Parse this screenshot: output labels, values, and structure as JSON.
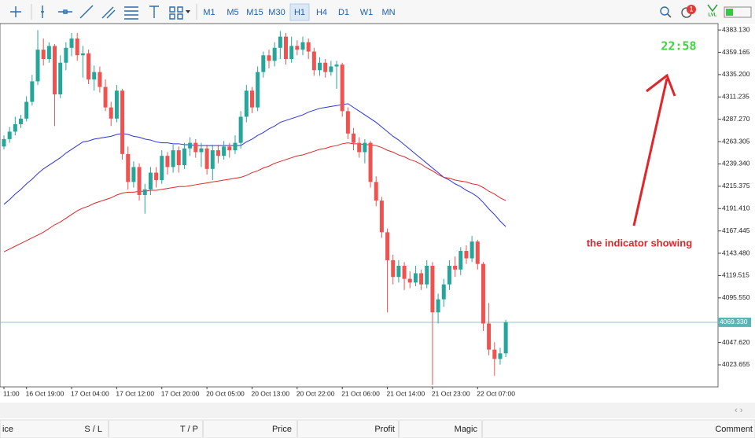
{
  "toolbar": {
    "timeframes": [
      "M1",
      "M5",
      "M15",
      "M30",
      "H1",
      "H4",
      "D1",
      "W1",
      "MN"
    ],
    "active": "H1",
    "badge": "1",
    "level": "LVL"
  },
  "chart_data": {
    "type": "candlestick",
    "categories": [
      "11:00",
      null,
      null,
      null,
      "16 Oct 19:00",
      null,
      null,
      null,
      null,
      null,
      null,
      null,
      "17 Oct 04:00",
      null,
      null,
      null,
      null,
      null,
      null,
      null,
      "17 Oct 12:00",
      null,
      null,
      null,
      null,
      null,
      null,
      null,
      "17 Oct 20:00",
      null,
      null,
      null,
      null,
      null,
      null,
      null,
      "20 Oct 05:00",
      null,
      null,
      null,
      null,
      null,
      null,
      null,
      "20 Oct 13:00",
      null,
      null,
      null,
      null,
      null,
      null,
      null,
      "20 Oct 22:00",
      null,
      null,
      null,
      null,
      null,
      null,
      null,
      "21 Oct 06:00",
      null,
      null,
      null,
      null,
      null,
      null,
      null,
      "21 Oct 14:00",
      null,
      null,
      null,
      null,
      null,
      null,
      null,
      "21 Oct 23:00",
      null,
      null,
      null,
      null,
      null,
      null,
      null,
      "22 Oct 07:00",
      null,
      null,
      null,
      null,
      null
    ],
    "open": [
      4258,
      4266,
      4274,
      4282,
      4288,
      4306,
      4328,
      4362,
      4352,
      4366,
      4314,
      4348,
      4364,
      4374,
      4356,
      4358,
      4330,
      4338,
      4322,
      4300,
      4288,
      4318,
      4250,
      4220,
      4236,
      4206,
      4212,
      4230,
      4222,
      4248,
      4236,
      4254,
      4238,
      4256,
      4262,
      4252,
      4256,
      4234,
      4254,
      4248,
      4258,
      4254,
      4262,
      4290,
      4318,
      4300,
      4338,
      4356,
      4350,
      4364,
      4376,
      4352,
      4366,
      4362,
      4370,
      4360,
      4340,
      4348,
      4338,
      4344,
      4346,
      4296,
      4272,
      4262,
      4252,
      4262,
      4220,
      4200,
      4166,
      4136,
      4118,
      4130,
      4116,
      4112,
      4122,
      4110,
      4130,
      4080,
      4094,
      4110,
      4130,
      4126,
      4146,
      4138,
      4156,
      4132,
      4068,
      4040,
      4030,
      4036
    ],
    "high": [
      4270,
      4279,
      4290,
      4292,
      4312,
      4335,
      4383,
      4374,
      4370,
      4368,
      4356,
      4370,
      4380,
      4380,
      4366,
      4362,
      4345,
      4344,
      4330,
      4306,
      4324,
      4320,
      4258,
      4242,
      4240,
      4218,
      4236,
      4236,
      4254,
      4252,
      4260,
      4258,
      4262,
      4268,
      4266,
      4262,
      4260,
      4260,
      4260,
      4264,
      4262,
      4270,
      4296,
      4324,
      4322,
      4344,
      4360,
      4362,
      4370,
      4382,
      4380,
      4376,
      4372,
      4376,
      4374,
      4364,
      4354,
      4352,
      4350,
      4350,
      4348,
      4300,
      4278,
      4268,
      4266,
      4264,
      4226,
      4204,
      4170,
      4142,
      4136,
      4134,
      4124,
      4130,
      4126,
      4136,
      4134,
      4100,
      4116,
      4136,
      4140,
      4150,
      4152,
      4162,
      4158,
      4134,
      4090,
      4048,
      4042,
      4072
    ],
    "low": [
      4255,
      4262,
      4270,
      4278,
      4285,
      4302,
      4324,
      4345,
      4348,
      4280,
      4310,
      4340,
      4355,
      4350,
      4332,
      4325,
      4318,
      4316,
      4296,
      4280,
      4284,
      4244,
      4212,
      4214,
      4200,
      4186,
      4206,
      4214,
      4218,
      4228,
      4230,
      4230,
      4234,
      4248,
      4246,
      4236,
      4228,
      4222,
      4240,
      4244,
      4246,
      4250,
      4256,
      4284,
      4294,
      4296,
      4332,
      4342,
      4344,
      4352,
      4346,
      4348,
      4356,
      4356,
      4352,
      4334,
      4334,
      4332,
      4334,
      4320,
      4290,
      4266,
      4254,
      4246,
      4240,
      4214,
      4194,
      4160,
      4080,
      4110,
      4112,
      4104,
      4106,
      4108,
      4104,
      4106,
      4002,
      4068,
      4086,
      4104,
      4118,
      4120,
      4132,
      4134,
      4126,
      4060,
      4034,
      4012,
      4024,
      4032
    ],
    "close": [
      4266,
      4274,
      4282,
      4288,
      4306,
      4328,
      4362,
      4352,
      4366,
      4314,
      4348,
      4364,
      4374,
      4356,
      4358,
      4330,
      4338,
      4322,
      4300,
      4288,
      4318,
      4250,
      4220,
      4236,
      4206,
      4212,
      4230,
      4222,
      4248,
      4236,
      4254,
      4238,
      4256,
      4262,
      4252,
      4256,
      4234,
      4254,
      4248,
      4258,
      4254,
      4262,
      4290,
      4318,
      4300,
      4338,
      4356,
      4350,
      4364,
      4376,
      4352,
      4366,
      4362,
      4370,
      4360,
      4340,
      4348,
      4338,
      4344,
      4346,
      4296,
      4272,
      4262,
      4252,
      4262,
      4220,
      4200,
      4166,
      4136,
      4118,
      4130,
      4116,
      4112,
      4122,
      4110,
      4130,
      4080,
      4094,
      4110,
      4130,
      4126,
      4146,
      4138,
      4156,
      4132,
      4068,
      4040,
      4030,
      4036,
      4069.33
    ],
    "up_color": "#26a69a",
    "down_color": "#ef5350",
    "lines": [
      {
        "color": "#2a35d6",
        "values": [
          4196,
          4201,
          4207,
          4212,
          4218,
          4223,
          4229,
          4234,
          4238,
          4242,
          4246,
          4251,
          4255,
          4259,
          4263,
          4264,
          4266,
          4267,
          4268,
          4269,
          4271,
          4272,
          4271,
          4269,
          4268,
          4266,
          4265,
          4263,
          4262,
          4262,
          4261,
          4261,
          4260,
          4260,
          4259,
          4259,
          4259,
          4259,
          4259,
          4259,
          4259,
          4259,
          4259,
          4263,
          4266,
          4270,
          4273,
          4277,
          4280,
          4284,
          4286,
          4288,
          4290,
          4292,
          4295,
          4297,
          4299,
          4300,
          4301,
          4302,
          4303,
          4304,
          4300,
          4296,
          4292,
          4288,
          4284,
          4279,
          4274,
          4269,
          4265,
          4260,
          4255,
          4250,
          4245,
          4240,
          4235,
          4230,
          4225,
          4222,
          4218,
          4215,
          4211,
          4208,
          4204,
          4198,
          4191,
          4185,
          4178,
          4172
        ]
      },
      {
        "color": "#e0262a",
        "values": [
          4145,
          4148,
          4151,
          4154,
          4157,
          4160,
          4163,
          4166,
          4170,
          4174,
          4177,
          4181,
          4185,
          4189,
          4192,
          4194,
          4197,
          4199,
          4201,
          4203,
          4206,
          4208,
          4209,
          4209,
          4210,
          4210,
          4211,
          4211,
          4212,
          4213,
          4214,
          4215,
          4215,
          4216,
          4217,
          4218,
          4219,
          4220,
          4221,
          4222,
          4223,
          4224,
          4225,
          4227,
          4230,
          4232,
          4235,
          4237,
          4240,
          4242,
          4244,
          4246,
          4248,
          4249,
          4251,
          4253,
          4255,
          4256,
          4258,
          4259,
          4261,
          4262,
          4261,
          4261,
          4260,
          4260,
          4259,
          4257,
          4254,
          4252,
          4249,
          4247,
          4244,
          4242,
          4239,
          4235,
          4232,
          4228,
          4225,
          4224,
          4222,
          4221,
          4220,
          4218,
          4217,
          4214,
          4210,
          4207,
          4203,
          4200
        ]
      }
    ],
    "ylim": [
      4000,
      4390
    ],
    "yticks": [
      {
        "value": 4383.13,
        "label": "4383.130"
      },
      4359.165,
      {
        "value": 4335.2,
        "label": "4335.200"
      },
      4311.235,
      {
        "value": 4287.27,
        "label": "4287.270"
      },
      4263.305,
      {
        "value": 4239.34,
        "label": "4239.340"
      },
      4215.375,
      {
        "value": 4191.41,
        "label": "4191.410"
      },
      4167.445,
      {
        "value": 4143.48,
        "label": "4143.480"
      },
      4119.515,
      {
        "value": 4095.55,
        "label": "4095.550"
      },
      {
        "value": 4047.62,
        "label": "4047.620"
      },
      4023.655
    ],
    "current_price": {
      "value": 4069.33,
      "label": "4069.330"
    },
    "clock": "22:58",
    "annotation": "the indicator showing"
  },
  "table_headers": [
    "ice",
    "S / L",
    "T / P",
    "Price",
    "Profit",
    "Magic",
    "Comment"
  ]
}
